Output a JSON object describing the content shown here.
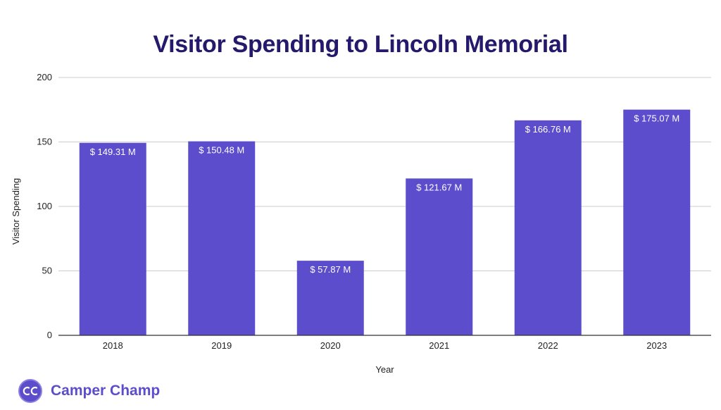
{
  "chart_data": {
    "type": "bar",
    "title": "Visitor Spending to Lincoln Memorial",
    "xlabel": "Year",
    "ylabel": "Visitor Spending",
    "categories": [
      "2018",
      "2019",
      "2020",
      "2021",
      "2022",
      "2023"
    ],
    "values": [
      149.31,
      150.48,
      57.87,
      121.67,
      166.76,
      175.07
    ],
    "data_labels": [
      "$ 149.31 M",
      "$ 150.48 M",
      "$ 57.87 M",
      "$ 121.67 M",
      "$ 166.76 M",
      "$ 175.07 M"
    ],
    "ylim": [
      0,
      200
    ],
    "yticks": [
      "0",
      "50",
      "100",
      "150",
      "200"
    ],
    "grid": true,
    "bar_color": "#5b4dcb",
    "title_color": "#24196b"
  },
  "brand": {
    "name": "Camper Champ",
    "logo_text": "CC",
    "color": "#5b4dcb"
  }
}
